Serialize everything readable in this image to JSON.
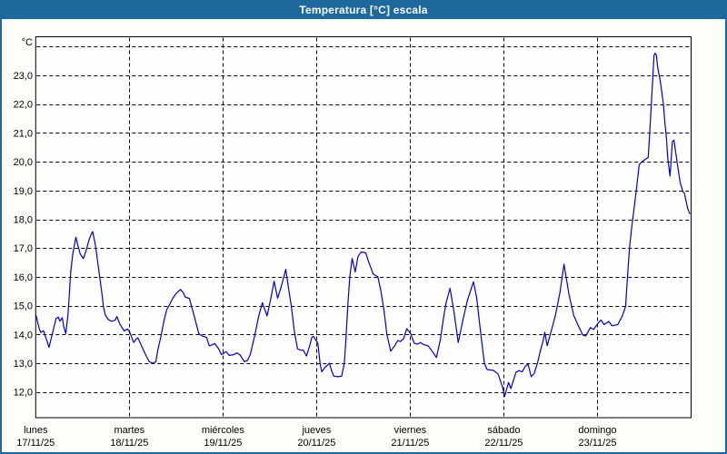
{
  "window": {
    "title": "Temperatura [°C] escala",
    "title_bar_color": "#1d689c",
    "border_color": "#24689b",
    "background_color": "#fcfef8"
  },
  "chart_data": {
    "type": "line",
    "title": "Temperatura [°C] escala",
    "unit_label": "°C",
    "line_color": "#0000cc",
    "grid": "dashed-black",
    "legend": "none",
    "y_axis": {
      "min": 12,
      "max": 24,
      "gridline_values": [
        24,
        23,
        22,
        21,
        20,
        19,
        18,
        17,
        16,
        15,
        14,
        13,
        12
      ],
      "ticks": [
        {
          "label": "23,0",
          "value": 23
        },
        {
          "label": "22,0",
          "value": 22
        },
        {
          "label": "21,0",
          "value": 21
        },
        {
          "label": "20,0",
          "value": 20
        },
        {
          "label": "19,0",
          "value": 19
        },
        {
          "label": "18,0",
          "value": 18
        },
        {
          "label": "17,0",
          "value": 17
        },
        {
          "label": "16,0",
          "value": 16
        },
        {
          "label": "15,0",
          "value": 15
        },
        {
          "label": "14,0",
          "value": 14
        },
        {
          "label": "13,0",
          "value": 13
        },
        {
          "label": "12,0",
          "value": 12
        }
      ]
    },
    "x_axis": {
      "min_hour": 0,
      "max_hour": 168,
      "gridline_hours": [
        24,
        48,
        72,
        96,
        120,
        144
      ],
      "days": [
        {
          "name": "lunes",
          "date": "17/11/25",
          "hour": 0
        },
        {
          "name": "martes",
          "date": "18/11/25",
          "hour": 24
        },
        {
          "name": "miércoles",
          "date": "19/11/25",
          "hour": 48
        },
        {
          "name": "jueves",
          "date": "20/11/25",
          "hour": 72
        },
        {
          "name": "viernes",
          "date": "21/11/25",
          "hour": 96
        },
        {
          "name": "sábado",
          "date": "22/11/25",
          "hour": 120
        },
        {
          "name": "domingo",
          "date": "23/11/25",
          "hour": 144
        }
      ]
    },
    "series": [
      {
        "name": "Temperatura",
        "points": [
          [
            0,
            14.7
          ],
          [
            0.9,
            14.2
          ],
          [
            1.3,
            14.07
          ],
          [
            2.0,
            14.13
          ],
          [
            2.3,
            14.0
          ],
          [
            2.7,
            13.85
          ],
          [
            3.4,
            13.55
          ],
          [
            4.4,
            14.1
          ],
          [
            5.2,
            14.55
          ],
          [
            5.8,
            14.6
          ],
          [
            6.2,
            14.46
          ],
          [
            6.8,
            14.58
          ],
          [
            7.2,
            14.26
          ],
          [
            7.7,
            14.03
          ],
          [
            8.3,
            14.72
          ],
          [
            9.0,
            16.2
          ],
          [
            9.5,
            16.8
          ],
          [
            10.3,
            17.38
          ],
          [
            10.7,
            17.15
          ],
          [
            11.4,
            16.8
          ],
          [
            12.2,
            16.63
          ],
          [
            13.0,
            16.95
          ],
          [
            13.7,
            17.3
          ],
          [
            14.3,
            17.5
          ],
          [
            14.6,
            17.57
          ],
          [
            15.3,
            17.1
          ],
          [
            16.1,
            16.3
          ],
          [
            16.9,
            15.5
          ],
          [
            17.4,
            14.93
          ],
          [
            17.9,
            14.66
          ],
          [
            18.6,
            14.52
          ],
          [
            19.5,
            14.45
          ],
          [
            20.4,
            14.5
          ],
          [
            20.8,
            14.62
          ],
          [
            21.6,
            14.35
          ],
          [
            22.7,
            14.12
          ],
          [
            23.5,
            14.19
          ],
          [
            24.1,
            14.08
          ],
          [
            25.1,
            13.72
          ],
          [
            25.8,
            13.85
          ],
          [
            26.2,
            13.88
          ],
          [
            27.4,
            13.52
          ],
          [
            28.2,
            13.28
          ],
          [
            29.1,
            13.05
          ],
          [
            30.1,
            13.0
          ],
          [
            30.8,
            13.05
          ],
          [
            31.3,
            13.47
          ],
          [
            32.1,
            13.93
          ],
          [
            32.9,
            14.49
          ],
          [
            33.6,
            14.86
          ],
          [
            34.4,
            15.06
          ],
          [
            35.2,
            15.27
          ],
          [
            36.0,
            15.42
          ],
          [
            37.1,
            15.56
          ],
          [
            37.8,
            15.45
          ],
          [
            38.3,
            15.3
          ],
          [
            38.9,
            15.27
          ],
          [
            39.4,
            15.25
          ],
          [
            40.6,
            14.65
          ],
          [
            41.8,
            14.03
          ],
          [
            42.6,
            13.95
          ],
          [
            43.8,
            13.9
          ],
          [
            44.5,
            13.6
          ],
          [
            45.3,
            13.65
          ],
          [
            45.9,
            13.68
          ],
          [
            46.9,
            13.5
          ],
          [
            47.6,
            13.3
          ],
          [
            48.2,
            13.35
          ],
          [
            48.8,
            13.4
          ],
          [
            49.6,
            13.27
          ],
          [
            50.8,
            13.3
          ],
          [
            51.5,
            13.36
          ],
          [
            52.3,
            13.3
          ],
          [
            53.5,
            13.05
          ],
          [
            54.3,
            13.1
          ],
          [
            55.0,
            13.3
          ],
          [
            56.2,
            14.0
          ],
          [
            57.1,
            14.6
          ],
          [
            58.1,
            15.1
          ],
          [
            59.3,
            14.64
          ],
          [
            60.2,
            15.2
          ],
          [
            61.1,
            15.85
          ],
          [
            62.0,
            15.26
          ],
          [
            62.8,
            15.6
          ],
          [
            64.1,
            16.26
          ],
          [
            64.8,
            15.6
          ],
          [
            65.5,
            15.0
          ],
          [
            66.3,
            14.1
          ],
          [
            67.1,
            13.5
          ],
          [
            67.9,
            13.45
          ],
          [
            68.6,
            13.45
          ],
          [
            69.4,
            13.25
          ],
          [
            70.2,
            13.6
          ],
          [
            70.8,
            13.9
          ],
          [
            71.2,
            13.93
          ],
          [
            71.8,
            13.8
          ],
          [
            72.3,
            13.7
          ],
          [
            72.9,
            13.0
          ],
          [
            73.3,
            12.7
          ],
          [
            74.1,
            12.85
          ],
          [
            75.3,
            13.0
          ],
          [
            75.8,
            12.75
          ],
          [
            76.4,
            12.55
          ],
          [
            77.6,
            12.53
          ],
          [
            78.4,
            12.55
          ],
          [
            79.1,
            13.0
          ],
          [
            79.5,
            13.8
          ],
          [
            80.0,
            15.0
          ],
          [
            80.5,
            16.0
          ],
          [
            81.1,
            16.64
          ],
          [
            81.9,
            16.17
          ],
          [
            82.6,
            16.7
          ],
          [
            83.4,
            16.86
          ],
          [
            84.2,
            16.85
          ],
          [
            84.6,
            16.83
          ],
          [
            85.4,
            16.5
          ],
          [
            86.5,
            16.1
          ],
          [
            87.7,
            16.0
          ],
          [
            88.5,
            15.5
          ],
          [
            89.3,
            14.8
          ],
          [
            90.0,
            14.0
          ],
          [
            91.0,
            13.42
          ],
          [
            92.0,
            13.6
          ],
          [
            92.8,
            13.79
          ],
          [
            93.5,
            13.75
          ],
          [
            94.3,
            13.85
          ],
          [
            95.1,
            14.2
          ],
          [
            96.1,
            14.03
          ],
          [
            97.0,
            13.7
          ],
          [
            97.8,
            13.66
          ],
          [
            98.6,
            13.72
          ],
          [
            99.4,
            13.65
          ],
          [
            100.6,
            13.6
          ],
          [
            101.7,
            13.4
          ],
          [
            102.7,
            13.2
          ],
          [
            103.7,
            13.8
          ],
          [
            104.5,
            14.55
          ],
          [
            105.2,
            15.1
          ],
          [
            106.2,
            15.6
          ],
          [
            107.2,
            14.8
          ],
          [
            108.3,
            13.72
          ],
          [
            109.5,
            14.5
          ],
          [
            110.7,
            15.2
          ],
          [
            112.2,
            15.83
          ],
          [
            113.0,
            15.3
          ],
          [
            114.2,
            13.9
          ],
          [
            115.0,
            13.0
          ],
          [
            115.7,
            12.78
          ],
          [
            117.3,
            12.75
          ],
          [
            118.5,
            12.63
          ],
          [
            119.6,
            12.2
          ],
          [
            120.2,
            11.85
          ],
          [
            121.2,
            12.33
          ],
          [
            121.8,
            12.12
          ],
          [
            123.1,
            12.69
          ],
          [
            123.9,
            12.74
          ],
          [
            124.7,
            12.7
          ],
          [
            125.5,
            12.9
          ],
          [
            126.2,
            12.97
          ],
          [
            127.0,
            12.53
          ],
          [
            127.8,
            12.65
          ],
          [
            128.6,
            13.0
          ],
          [
            129.3,
            13.4
          ],
          [
            130.1,
            13.8
          ],
          [
            130.5,
            14.08
          ],
          [
            131.1,
            13.61
          ],
          [
            132.1,
            14.1
          ],
          [
            133.2,
            14.65
          ],
          [
            134.4,
            15.48
          ],
          [
            135.4,
            16.44
          ],
          [
            136.7,
            15.39
          ],
          [
            137.9,
            14.66
          ],
          [
            139.1,
            14.3
          ],
          [
            140.2,
            13.98
          ],
          [
            141.0,
            13.95
          ],
          [
            142.2,
            14.24
          ],
          [
            143.0,
            14.17
          ],
          [
            144.2,
            14.4
          ],
          [
            144.9,
            14.5
          ],
          [
            145.7,
            14.34
          ],
          [
            146.9,
            14.45
          ],
          [
            147.7,
            14.3
          ],
          [
            148.4,
            14.32
          ],
          [
            149.2,
            14.34
          ],
          [
            150.4,
            14.65
          ],
          [
            151.2,
            14.97
          ],
          [
            151.7,
            16.0
          ],
          [
            152.2,
            17.0
          ],
          [
            152.7,
            17.63
          ],
          [
            153.9,
            18.96
          ],
          [
            154.7,
            19.9
          ],
          [
            155.4,
            20.0
          ],
          [
            157.0,
            20.15
          ],
          [
            157.4,
            21.03
          ],
          [
            158.0,
            22.5
          ],
          [
            158.5,
            23.7
          ],
          [
            158.8,
            23.77
          ],
          [
            159.1,
            23.7
          ],
          [
            159.4,
            23.3
          ],
          [
            160.1,
            22.8
          ],
          [
            160.9,
            22.0
          ],
          [
            161.3,
            21.34
          ],
          [
            161.7,
            20.77
          ],
          [
            162.0,
            20.16
          ],
          [
            162.6,
            19.5
          ],
          [
            163.2,
            20.7
          ],
          [
            163.6,
            20.75
          ],
          [
            164.4,
            20.0
          ],
          [
            165.2,
            19.27
          ],
          [
            165.9,
            18.96
          ],
          [
            166.3,
            18.9
          ],
          [
            167.1,
            18.39
          ],
          [
            167.7,
            18.18
          ]
        ]
      }
    ]
  }
}
